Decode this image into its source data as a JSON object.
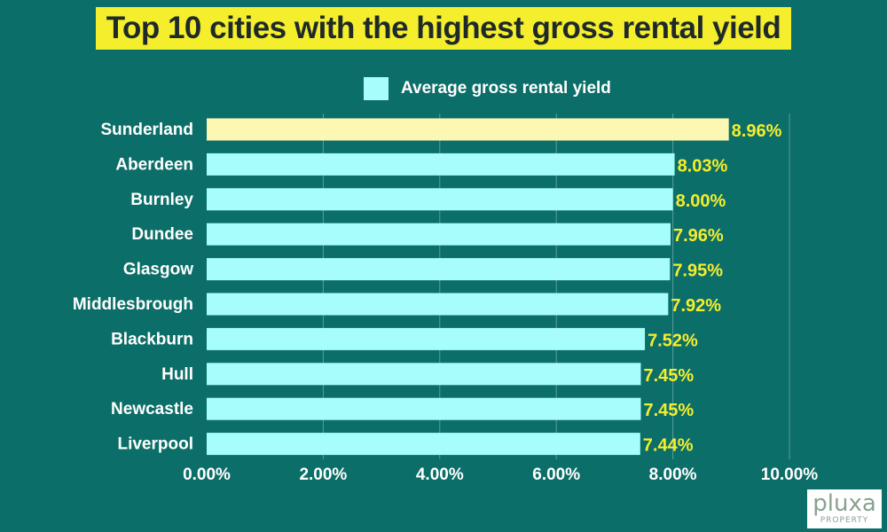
{
  "chart_data": {
    "type": "bar",
    "orientation": "horizontal",
    "title": "Top 10 cities with the highest gross rental yield",
    "categories": [
      "Sunderland",
      "Aberdeen",
      "Burnley",
      "Dundee",
      "Glasgow",
      "Middlesbrough",
      "Blackburn",
      "Hull",
      "Newcastle",
      "Liverpool"
    ],
    "series": [
      {
        "name": "Average gross rental yield",
        "values": [
          8.96,
          8.03,
          8.0,
          7.96,
          7.95,
          7.92,
          7.52,
          7.45,
          7.45,
          7.44
        ],
        "data_labels": [
          "8.96%",
          "8.03%",
          "8.00%",
          "7.96%",
          "7.95%",
          "7.92%",
          "7.52%",
          "7.45%",
          "7.45%",
          "7.44%"
        ]
      }
    ],
    "x_ticks": [
      0,
      2,
      4,
      6,
      8,
      10
    ],
    "x_tick_labels": [
      "0.00%",
      "2.00%",
      "4.00%",
      "6.00%",
      "8.00%",
      "10.00%"
    ],
    "xlim": [
      0,
      10
    ],
    "grid": true,
    "legend_position": "top-center",
    "highlight_category": "Sunderland"
  },
  "colors": {
    "background": "#0c6e68",
    "bar": "#a6fdf9",
    "highlight_bar": "#fdf7b4",
    "data_label": "#f5ee2d",
    "title_banner": "#f5ee2d",
    "title_text": "#1e2a2a",
    "category_text": "#ffffff",
    "tick_text": "#ffffff",
    "gridline": "#5a9e99"
  },
  "logo": {
    "word": "pluxa",
    "subtitle": "PROPERTY"
  }
}
